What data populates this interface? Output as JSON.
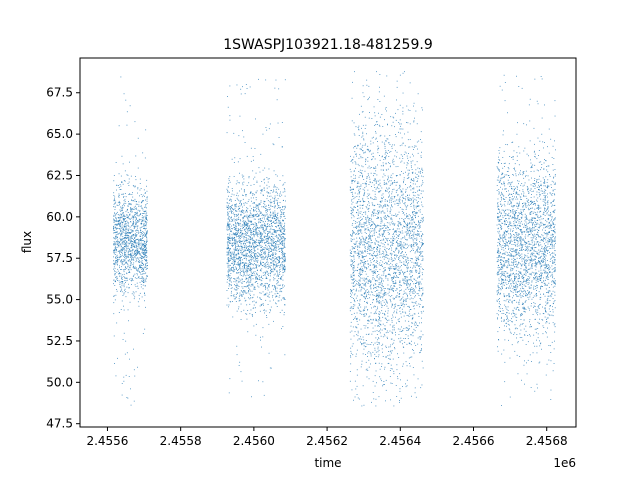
{
  "chart_data": {
    "type": "scatter",
    "title": "1SWASPJ103921.18-481259.9",
    "xlabel": "time",
    "ylabel": "flux",
    "x_offset_label": "1e6",
    "xlim": [
      2455525,
      2456880
    ],
    "ylim": [
      47.3,
      69.6
    ],
    "x_ticks": [
      2455600,
      2455800,
      2456000,
      2456200,
      2456400,
      2456600,
      2456800
    ],
    "x_tick_labels": [
      "2.4556",
      "2.4558",
      "2.4560",
      "2.4562",
      "2.4564",
      "2.4566",
      "2.4568"
    ],
    "y_ticks": [
      47.5,
      50.0,
      52.5,
      55.0,
      57.5,
      60.0,
      62.5,
      65.0,
      67.5
    ],
    "y_tick_labels": [
      "47.5",
      "50.0",
      "52.5",
      "55.0",
      "57.5",
      "60.0",
      "62.5",
      "65.0",
      "67.5"
    ],
    "grid": false,
    "legend": false,
    "marker_color": "#1f77b4",
    "series": [
      {
        "seasons": [
          {
            "x_range": [
              2455615,
              2455708
            ],
            "center": 58.6,
            "core_low": 56.8,
            "core_high": 60.9,
            "min": 48.5,
            "max": 68.7
          },
          {
            "x_range": [
              2455925,
              2456085
            ],
            "center": 58.4,
            "core_low": 56.4,
            "core_high": 61.2,
            "min": 48.8,
            "max": 68.6
          },
          {
            "x_range": [
              2456262,
              2456462
            ],
            "center": 58.2,
            "core_low": 54.0,
            "core_high": 63.5,
            "min": 48.6,
            "max": 68.8
          },
          {
            "x_range": [
              2456663,
              2456823
            ],
            "center": 58.3,
            "core_low": 55.0,
            "core_high": 62.0,
            "min": 48.5,
            "max": 68.7
          }
        ]
      }
    ]
  }
}
